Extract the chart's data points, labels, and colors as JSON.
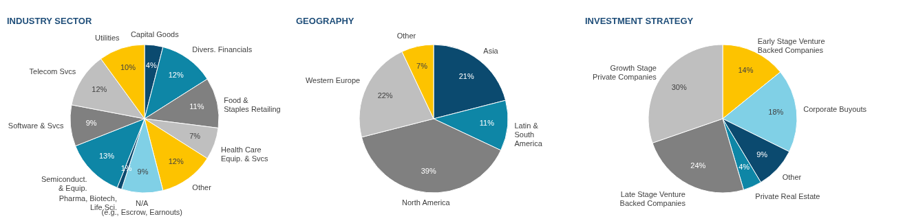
{
  "chart_data": [
    {
      "type": "pie",
      "title": "INDUSTRY SECTOR",
      "categories": [
        "Capital Goods",
        "Divers. Financials",
        "Food &\nStaples Retailing",
        "Health Care\nEquip. & Svcs",
        "Other",
        "N/A\n(e.g., Escrow, Earnouts)",
        "Pharma,  Biotech,\nLife Sci.",
        "Semiconduct.\n& Equip.",
        "Software & Svcs",
        "Telecom Svcs",
        "Utilities"
      ],
      "values": [
        4,
        12,
        11,
        7,
        12,
        9,
        1,
        13,
        9,
        12,
        10
      ],
      "value_labels": [
        "4%",
        "12%",
        "11%",
        "7%",
        "12%",
        "9%",
        "1%",
        "13%",
        "9%",
        "12%",
        "10%"
      ],
      "colors": [
        "#0b4a6f",
        "#0e86a6",
        "#808080",
        "#bfbfbf",
        "#fdc300",
        "#80d0e6",
        "#0b4a6f",
        "#0e86a6",
        "#808080",
        "#bfbfbf",
        "#fdc300"
      ]
    },
    {
      "type": "pie",
      "title": "GEOGRAPHY",
      "categories": [
        "Asia",
        "Latin &\nSouth\nAmerica",
        "North America",
        "Western Europe",
        "Other"
      ],
      "values": [
        21,
        11,
        39,
        22,
        7
      ],
      "value_labels": [
        "21%",
        "11%",
        "39%",
        "22%",
        "7%"
      ],
      "colors": [
        "#0b4a6f",
        "#0e86a6",
        "#808080",
        "#bfbfbf",
        "#fdc300"
      ]
    },
    {
      "type": "pie",
      "title": "INVESTMENT STRATEGY",
      "categories": [
        "Early Stage Venture\nBacked Companies",
        "Corporate Buyouts",
        "Other",
        "Private Real Estate",
        "Late Stage Venture\nBacked Companies",
        "Growth Stage\nPrivate Companies"
      ],
      "values": [
        14,
        18,
        9,
        4,
        24,
        30
      ],
      "value_labels": [
        "14%",
        "18%",
        "9%",
        "4%",
        "24%",
        "30%"
      ],
      "colors": [
        "#fdc300",
        "#80d0e6",
        "#0b4a6f",
        "#0e86a6",
        "#808080",
        "#bfbfbf"
      ]
    }
  ]
}
